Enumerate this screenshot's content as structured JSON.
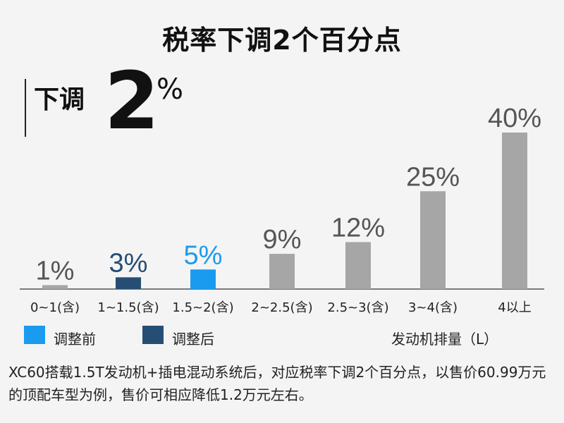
{
  "header": {
    "title": "税率下调2个百分点",
    "badge_label": "下调",
    "badge_value": "2",
    "badge_unit": "%"
  },
  "legend": [
    {
      "label": "调整前",
      "color": "#1a9bf0"
    },
    {
      "label": "调整后",
      "color": "#264e75"
    }
  ],
  "footnote": "XC60搭载1.5T发动机+插电混动系统后，对应税率下调2个百分点，以售价60.99万元的顶配车型为例，售价可相应降低1.2万元左右。",
  "chart_data": {
    "type": "bar",
    "xlabel": "发动机排量（L）",
    "ylabel": "",
    "categories": [
      "0~1(含)",
      "1~1.5(含)",
      "1.5~2(含)",
      "2~2.5(含)",
      "2.5~3(含)",
      "3~4(含)",
      "4以上"
    ],
    "values": [
      1,
      3,
      5,
      9,
      12,
      25,
      40
    ],
    "labels": [
      "1%",
      "3%",
      "5%",
      "9%",
      "12%",
      "25%",
      "40%"
    ],
    "bar_colors": [
      "#a6a6a6",
      "#264e75",
      "#1a9bf0",
      "#a6a6a6",
      "#a6a6a6",
      "#a6a6a6",
      "#a6a6a6"
    ],
    "label_colors": [
      "#555555",
      "#264e75",
      "#1a9bf0",
      "#555555",
      "#555555",
      "#555555",
      "#555555"
    ]
  }
}
